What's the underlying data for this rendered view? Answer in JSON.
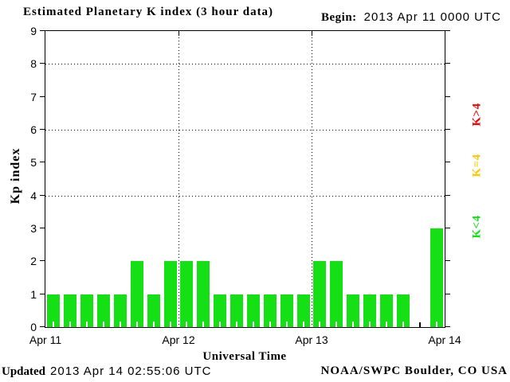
{
  "header": {
    "title": "Estimated Planetary K index (3 hour data)",
    "begin_label": "Begin:",
    "begin_value": "2013 Apr 11 0000 UTC"
  },
  "footer": {
    "updated_label": "Updated",
    "updated_value": "2013 Apr 14 02:55:06 UTC",
    "source": "NOAA/SWPC Boulder, CO USA"
  },
  "chart_data": {
    "type": "bar",
    "title": "Estimated Planetary K index (3 hour data)",
    "begin": "2013 Apr 11 0000 UTC",
    "xlabel": "Universal Time",
    "ylabel": "Kp index",
    "ylim": [
      0,
      9
    ],
    "y_ticks": [
      "0",
      "1",
      "2",
      "3",
      "4",
      "5",
      "6",
      "7",
      "8",
      "9"
    ],
    "dotted_y_gridlines": [
      4,
      6,
      8
    ],
    "x_day_labels": [
      "Apr 11",
      "Apr 12",
      "Apr 13",
      "Apr 14"
    ],
    "hours_per_bar": 3,
    "bars_per_day": 8,
    "values": [
      1,
      1,
      1,
      1,
      1,
      2,
      1,
      2,
      2,
      2,
      1,
      1,
      1,
      1,
      1,
      1,
      2,
      2,
      1,
      1,
      1,
      1,
      0,
      3
    ],
    "bar_color": "#15e015",
    "grid": "dotted horizontal at Kp 4/6/8, dotted vertical at day boundaries",
    "legend_position": "right",
    "legend": [
      {
        "label": "K>4",
        "color": "#fa0000"
      },
      {
        "label": "K=4",
        "color": "#ffc800"
      },
      {
        "label": "K<4",
        "color": "#15e015"
      }
    ]
  }
}
